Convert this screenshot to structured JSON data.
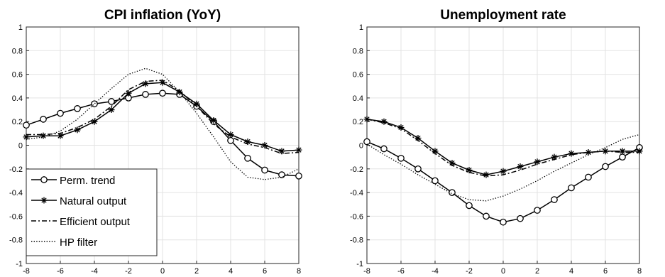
{
  "chart_data": [
    {
      "type": "line",
      "title": "CPI inflation (YoY)",
      "xlabel": "",
      "ylabel": "",
      "xlim": [
        -8,
        8
      ],
      "ylim": [
        -1,
        1
      ],
      "xticks": [
        "-8",
        "-6",
        "-4",
        "-2",
        "0",
        "2",
        "4",
        "6",
        "8"
      ],
      "yticks": [
        "1",
        "0.8",
        "0.6",
        "0.4",
        "0.2",
        "0",
        "-0.2",
        "-0.4",
        "-0.6",
        "-0.8",
        "-1"
      ],
      "grid": true,
      "legend_position": "bottom-left",
      "x": [
        -8,
        -7,
        -6,
        -5,
        -4,
        -3,
        -2,
        -1,
        0,
        1,
        2,
        3,
        4,
        5,
        6,
        7,
        8
      ],
      "series": [
        {
          "name": "Perm. trend",
          "style": "solid-circle",
          "values": [
            0.17,
            0.22,
            0.27,
            0.31,
            0.35,
            0.37,
            0.4,
            0.43,
            0.44,
            0.43,
            0.33,
            0.2,
            0.04,
            -0.11,
            -0.21,
            -0.25,
            -0.26
          ]
        },
        {
          "name": "Natural output",
          "style": "solid-star",
          "values": [
            0.07,
            0.08,
            0.08,
            0.13,
            0.2,
            0.3,
            0.44,
            0.52,
            0.53,
            0.45,
            0.35,
            0.21,
            0.09,
            0.03,
            0.0,
            -0.05,
            -0.04
          ]
        },
        {
          "name": "Efficient output",
          "style": "dashdot",
          "values": [
            0.09,
            0.09,
            0.1,
            0.15,
            0.22,
            0.33,
            0.47,
            0.54,
            0.55,
            0.46,
            0.33,
            0.18,
            0.07,
            0.01,
            -0.02,
            -0.07,
            -0.06
          ]
        },
        {
          "name": "HP filter",
          "style": "dotted",
          "values": [
            0.05,
            0.07,
            0.12,
            0.22,
            0.35,
            0.48,
            0.6,
            0.65,
            0.6,
            0.45,
            0.27,
            0.07,
            -0.14,
            -0.27,
            -0.29,
            -0.27,
            -0.2
          ]
        }
      ]
    },
    {
      "type": "line",
      "title": "Unemployment rate",
      "xlabel": "",
      "ylabel": "",
      "xlim": [
        -8,
        8
      ],
      "ylim": [
        -1,
        1
      ],
      "xticks": [
        "-8",
        "-6",
        "-4",
        "-2",
        "0",
        "2",
        "4",
        "6",
        "8"
      ],
      "yticks": [
        "1",
        "0.8",
        "0.6",
        "0.4",
        "0.2",
        "0",
        "-0.2",
        "-0.4",
        "-0.6",
        "-0.8",
        "-1"
      ],
      "grid": true,
      "x": [
        -8,
        -7,
        -6,
        -5,
        -4,
        -3,
        -2,
        -1,
        0,
        1,
        2,
        3,
        4,
        5,
        6,
        7,
        8
      ],
      "series": [
        {
          "name": "Perm. trend",
          "style": "solid-circle",
          "values": [
            0.03,
            -0.03,
            -0.11,
            -0.2,
            -0.3,
            -0.4,
            -0.51,
            -0.6,
            -0.65,
            -0.62,
            -0.55,
            -0.46,
            -0.36,
            -0.27,
            -0.18,
            -0.1,
            -0.02
          ]
        },
        {
          "name": "Natural output",
          "style": "solid-star",
          "values": [
            0.22,
            0.2,
            0.15,
            0.06,
            -0.05,
            -0.15,
            -0.21,
            -0.25,
            -0.22,
            -0.18,
            -0.14,
            -0.1,
            -0.07,
            -0.06,
            -0.05,
            -0.05,
            -0.05
          ]
        },
        {
          "name": "Efficient output",
          "style": "dashdot",
          "values": [
            0.22,
            0.19,
            0.14,
            0.04,
            -0.07,
            -0.17,
            -0.23,
            -0.26,
            -0.25,
            -0.21,
            -0.16,
            -0.12,
            -0.08,
            -0.06,
            -0.05,
            -0.06,
            -0.06
          ]
        },
        {
          "name": "HP filter",
          "style": "dotted",
          "values": [
            0.01,
            -0.08,
            -0.16,
            -0.25,
            -0.33,
            -0.41,
            -0.46,
            -0.47,
            -0.43,
            -0.37,
            -0.3,
            -0.22,
            -0.15,
            -0.08,
            -0.02,
            0.05,
            0.09
          ]
        }
      ]
    }
  ],
  "legend": {
    "entries": [
      "Perm. trend",
      "Natural output",
      "Efficient output",
      "HP filter"
    ]
  },
  "colors": {
    "line": "#000000",
    "grid": "#e3e3e3",
    "axis": "#262626",
    "background": "#ffffff"
  }
}
